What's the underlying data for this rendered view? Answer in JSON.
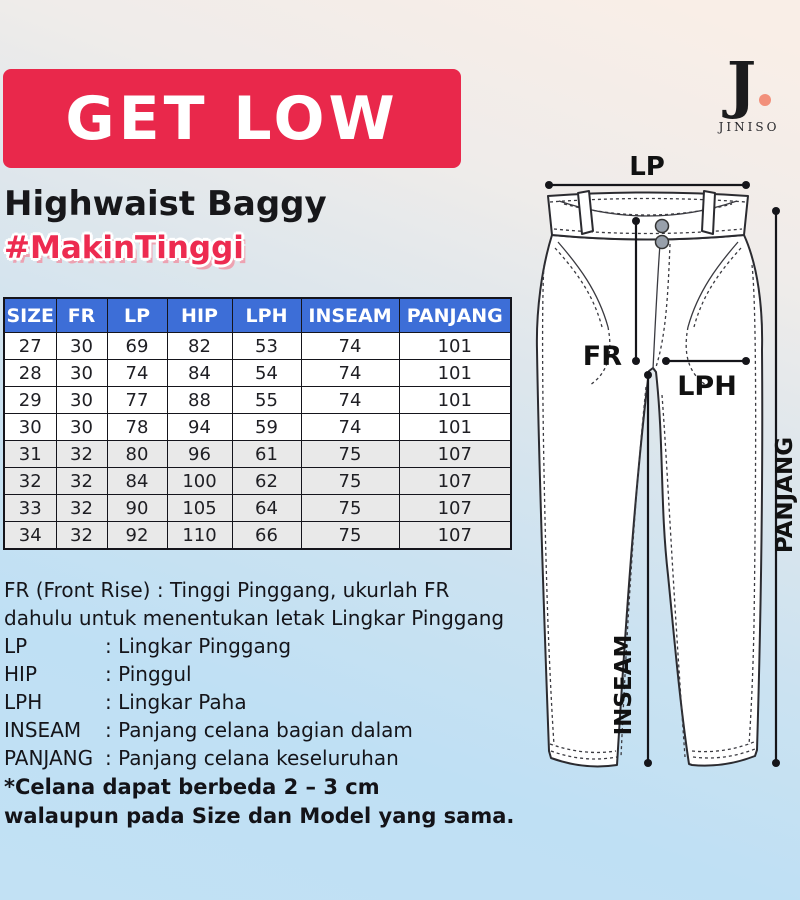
{
  "brand": {
    "logo_initial": "J",
    "logo_name": "JINISO"
  },
  "header": {
    "banner_title": "GET LOW",
    "subtitle": "Highwaist Baggy",
    "hashtag": "#MakinTinggi"
  },
  "size_table": {
    "columns": [
      "SIZE",
      "FR",
      "LP",
      "HIP",
      "LPH",
      "INSEAM",
      "PANJANG"
    ],
    "rows": [
      [
        "27",
        "30",
        "69",
        "82",
        "53",
        "74",
        "101"
      ],
      [
        "28",
        "30",
        "74",
        "84",
        "54",
        "74",
        "101"
      ],
      [
        "29",
        "30",
        "77",
        "88",
        "55",
        "74",
        "101"
      ],
      [
        "30",
        "30",
        "78",
        "94",
        "59",
        "74",
        "101"
      ],
      [
        "31",
        "32",
        "80",
        "96",
        "61",
        "75",
        "107"
      ],
      [
        "32",
        "32",
        "84",
        "100",
        "62",
        "75",
        "107"
      ],
      [
        "33",
        "32",
        "90",
        "105",
        "64",
        "75",
        "107"
      ],
      [
        "34",
        "32",
        "92",
        "110",
        "66",
        "75",
        "107"
      ]
    ]
  },
  "legend": {
    "fr_line1": "FR (Front Rise) : Tinggi Pinggang, ukurlah FR",
    "fr_line2": "dahulu untuk menentukan letak Lingkar Pinggang",
    "items": [
      {
        "term": "LP",
        "definition": ": Lingkar Pinggang"
      },
      {
        "term": "HIP",
        "definition": ": Pinggul"
      },
      {
        "term": "LPH",
        "definition": ": Lingkar Paha"
      },
      {
        "term": "INSEAM",
        "definition": ": Panjang celana bagian dalam"
      },
      {
        "term": "PANJANG",
        "definition": ": Panjang celana keseluruhan"
      }
    ]
  },
  "footnote": {
    "line1": "*Celana dapat berbeda 2 – 3 cm",
    "line2": "walaupun pada Size dan Model yang sama."
  },
  "diagram": {
    "labels": {
      "lp": "LP",
      "fr": "FR",
      "lph": "LPH",
      "inseam": "INSEAM",
      "panjang": "PANJANG"
    }
  },
  "colors": {
    "banner_red": "#E9284B",
    "hashtag_red": "#ED2B50",
    "table_header_blue": "#3D6ED7",
    "table_alt_row": "#E9E9E9",
    "logo_dot_salmon": "#F2907B",
    "background_blue": "#BFE0F4",
    "background_peach": "#F9EEE7"
  }
}
